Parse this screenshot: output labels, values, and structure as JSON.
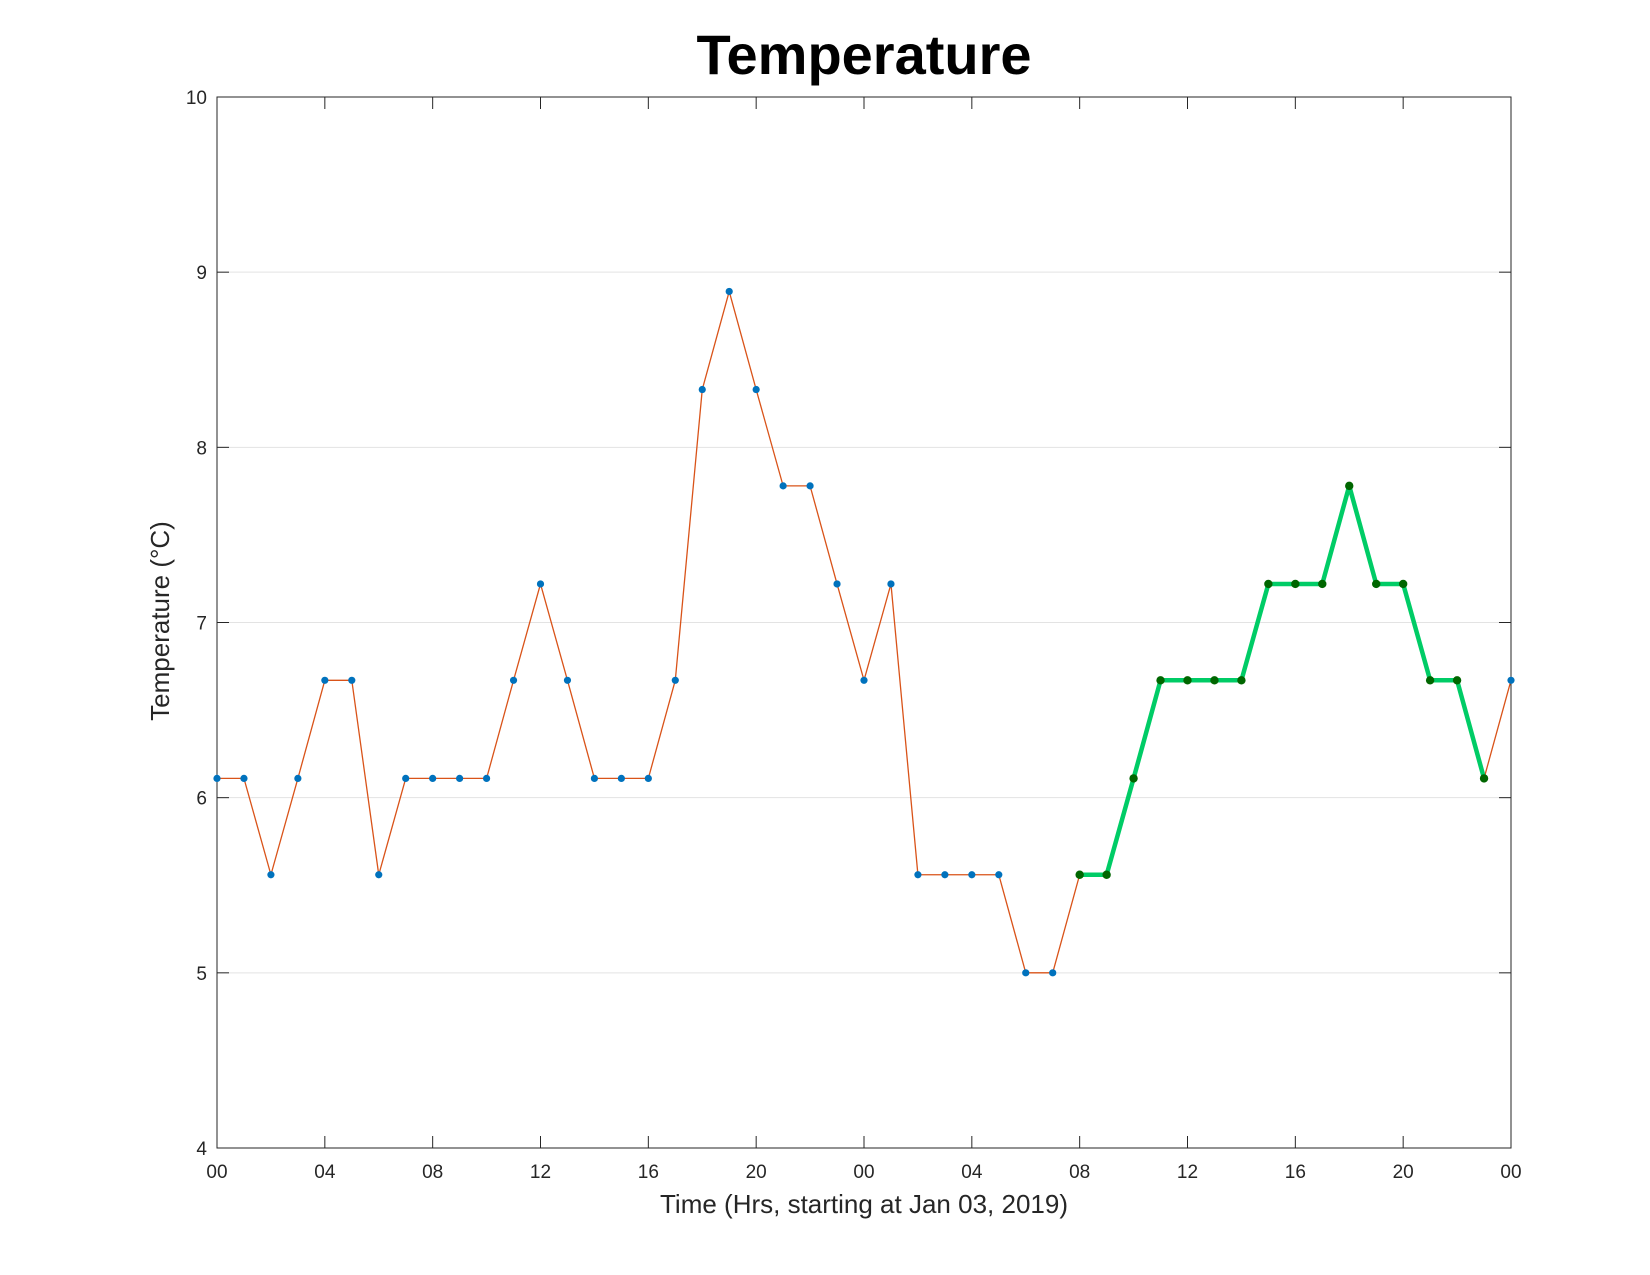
{
  "chart_data": {
    "type": "line",
    "title": "Temperature",
    "xlabel": "Time (Hrs, starting at Jan 03, 2019)",
    "ylabel": "Temperature (°C)",
    "ylim": [
      4,
      10
    ],
    "xlim": [
      "2019-01-03 00:00",
      "2019-01-05 00:00"
    ],
    "grid": "horizontal",
    "yticks": [
      4,
      5,
      6,
      7,
      8,
      9,
      10
    ],
    "xticks": [
      {
        "time": "2019-01-03 00:00",
        "label": "00"
      },
      {
        "time": "2019-01-03 04:00",
        "label": "04"
      },
      {
        "time": "2019-01-03 08:00",
        "label": "08"
      },
      {
        "time": "2019-01-03 12:00",
        "label": "12"
      },
      {
        "time": "2019-01-03 16:00",
        "label": "16"
      },
      {
        "time": "2019-01-03 20:00",
        "label": "20"
      },
      {
        "time": "2019-01-04 00:00",
        "label": "00"
      },
      {
        "time": "2019-01-04 04:00",
        "label": "04"
      },
      {
        "time": "2019-01-04 08:00",
        "label": "08"
      },
      {
        "time": "2019-01-04 12:00",
        "label": "12"
      },
      {
        "time": "2019-01-04 16:00",
        "label": "16"
      },
      {
        "time": "2019-01-04 20:00",
        "label": "20"
      },
      {
        "time": "2019-01-05 00:00",
        "label": "00"
      }
    ],
    "series": [
      {
        "color": "#d95319",
        "marker_color": "#0072bd",
        "x": [
          "2019-01-03 00:00",
          "2019-01-03 01:00",
          "2019-01-03 02:00",
          "2019-01-03 03:00",
          "2019-01-03 04:00",
          "2019-01-03 05:00",
          "2019-01-03 06:00",
          "2019-01-03 07:00",
          "2019-01-03 08:00",
          "2019-01-03 09:00",
          "2019-01-03 10:00",
          "2019-01-03 11:00",
          "2019-01-03 12:00",
          "2019-01-03 13:00",
          "2019-01-03 14:00",
          "2019-01-03 15:00",
          "2019-01-03 16:00",
          "2019-01-03 17:00",
          "2019-01-03 18:00",
          "2019-01-03 19:00",
          "2019-01-03 20:00",
          "2019-01-03 21:00",
          "2019-01-03 22:00",
          "2019-01-03 23:00",
          "2019-01-04 00:00",
          "2019-01-04 01:00",
          "2019-01-04 02:00",
          "2019-01-04 03:00",
          "2019-01-04 04:00",
          "2019-01-04 05:00",
          "2019-01-04 06:00",
          "2019-01-04 07:00",
          "2019-01-04 08:00",
          "2019-01-04 09:00",
          "2019-01-04 10:00",
          "2019-01-04 11:00",
          "2019-01-04 12:00",
          "2019-01-04 13:00",
          "2019-01-04 14:00",
          "2019-01-04 15:00",
          "2019-01-04 16:00",
          "2019-01-04 17:00",
          "2019-01-04 18:00",
          "2019-01-04 19:00",
          "2019-01-04 20:00",
          "2019-01-04 21:00",
          "2019-01-04 22:00",
          "2019-01-04 23:00",
          "2019-01-05 00:00"
        ],
        "y": [
          6.11,
          6.11,
          5.56,
          6.11,
          6.67,
          6.67,
          5.56,
          6.11,
          6.11,
          6.11,
          6.11,
          6.67,
          7.22,
          6.67,
          6.11,
          6.11,
          6.11,
          6.67,
          8.33,
          8.89,
          8.33,
          7.78,
          7.78,
          7.22,
          6.67,
          7.22,
          5.56,
          5.56,
          5.56,
          5.56,
          5.0,
          5.0,
          5.56,
          5.56,
          6.11,
          6.67,
          6.67,
          6.67,
          6.67,
          7.22,
          7.22,
          7.22,
          7.78,
          7.22,
          7.22,
          6.67,
          6.67,
          6.11,
          6.67
        ]
      },
      {
        "color": "#00cc66",
        "marker_color": "#006600",
        "x": [
          "2019-01-04 08:00",
          "2019-01-04 09:00",
          "2019-01-04 10:00",
          "2019-01-04 11:00",
          "2019-01-04 12:00",
          "2019-01-04 13:00",
          "2019-01-04 14:00",
          "2019-01-04 15:00",
          "2019-01-04 16:00",
          "2019-01-04 17:00",
          "2019-01-04 18:00",
          "2019-01-04 19:00",
          "2019-01-04 20:00",
          "2019-01-04 21:00",
          "2019-01-04 22:00",
          "2019-01-04 23:00"
        ],
        "y": [
          5.56,
          5.56,
          6.11,
          6.67,
          6.67,
          6.67,
          6.67,
          7.22,
          7.22,
          7.22,
          7.78,
          7.22,
          7.22,
          6.67,
          6.67,
          6.11
        ]
      }
    ]
  }
}
